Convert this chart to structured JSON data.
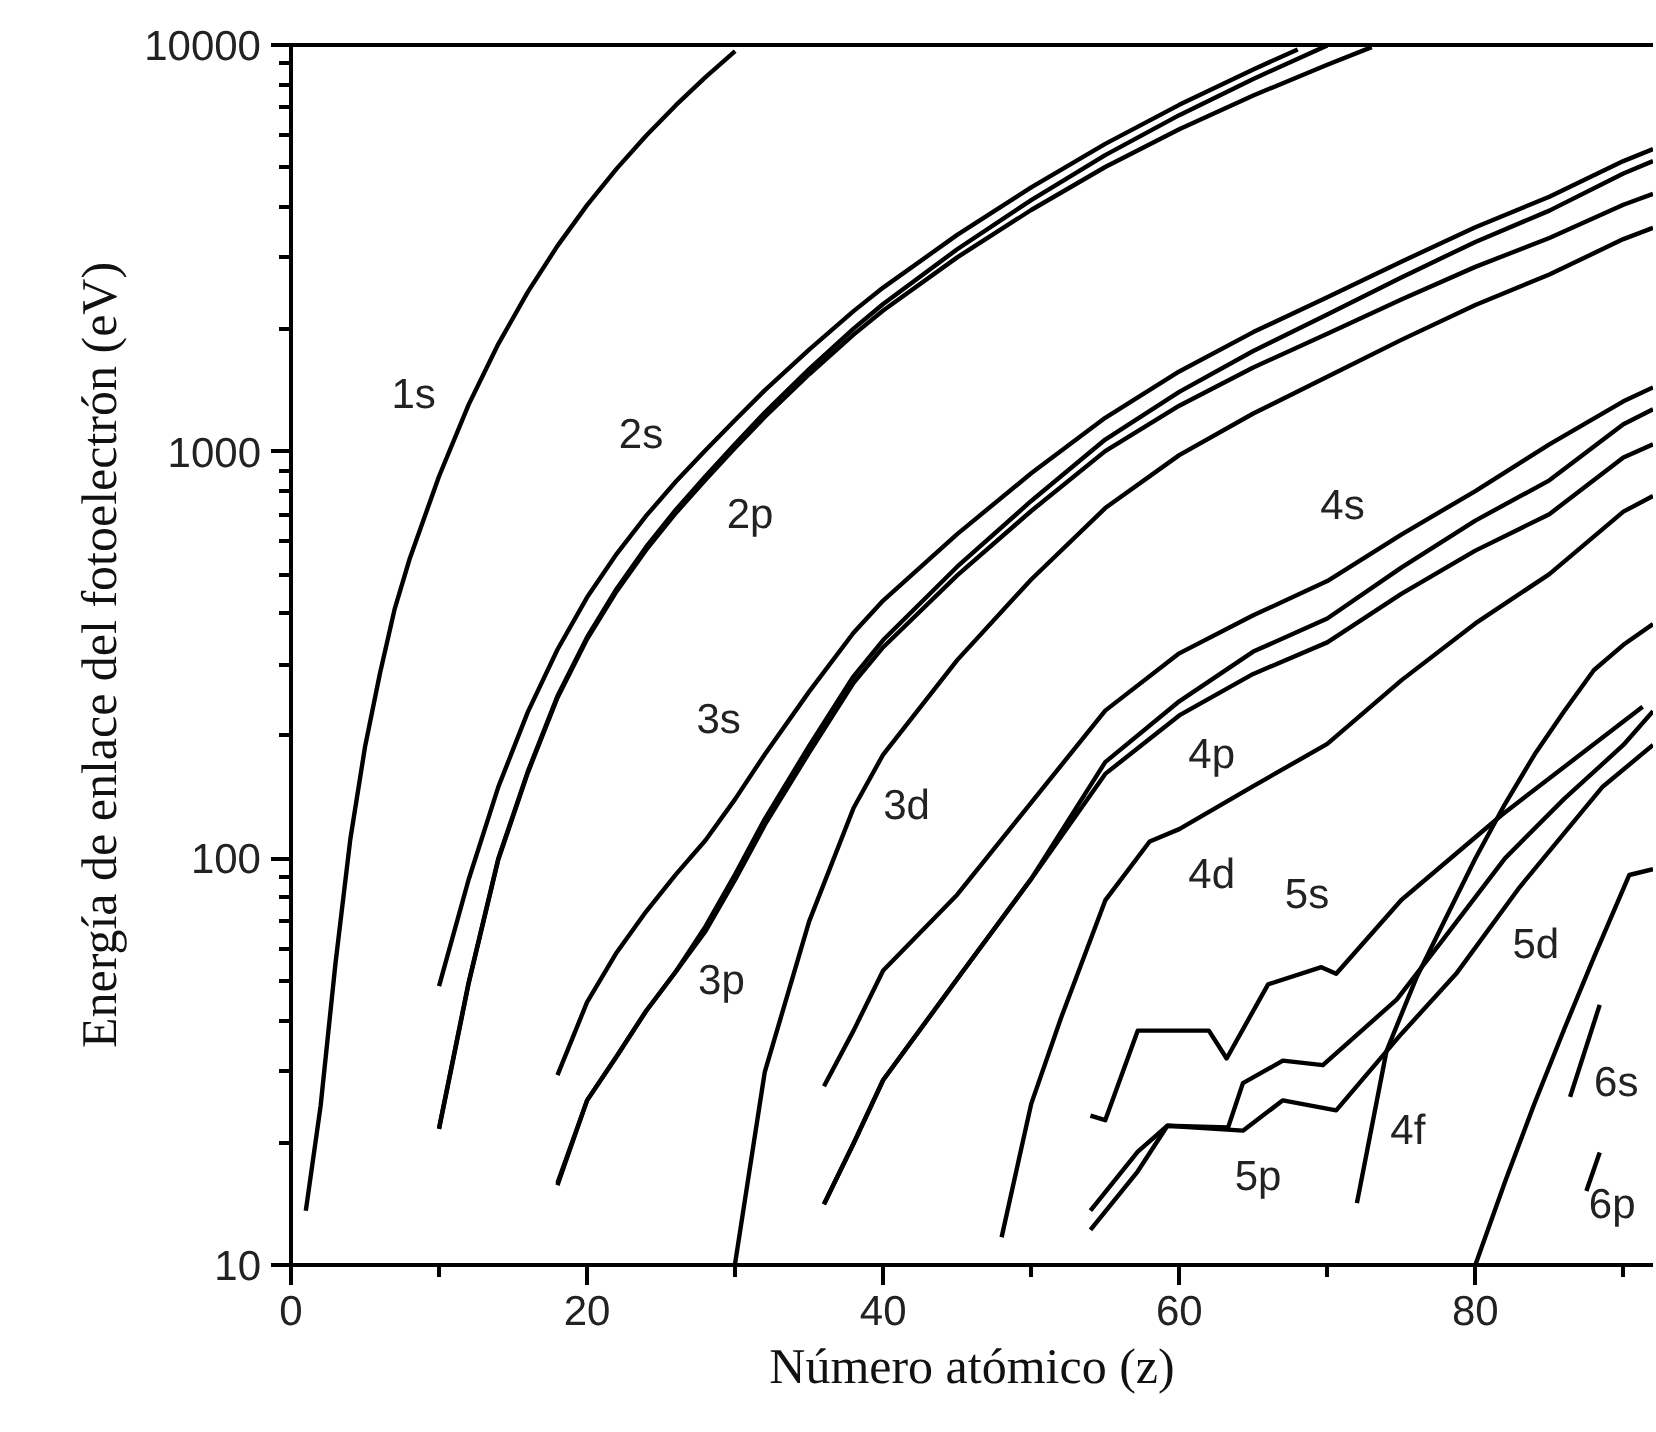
{
  "chart_data": {
    "type": "line",
    "xlabel": "Número atómico (z)",
    "ylabel": "Energía de enlace del fotoelectrón (eV)",
    "log": "y",
    "grid": false,
    "marker": "none",
    "line_style": "solid",
    "xlim": [
      0,
      92
    ],
    "ylim": [
      10,
      10000
    ],
    "xticks": [
      0,
      {
        "value": 10,
        "label": null
      },
      20,
      {
        "value": 30,
        "label": null
      },
      40,
      {
        "value": 50,
        "label": null
      },
      60,
      {
        "value": 70,
        "label": null
      },
      80,
      {
        "value": 90,
        "label": null
      }
    ],
    "yticks": [
      10,
      {
        "value": 20,
        "label": null
      },
      {
        "value": 30,
        "label": null
      },
      {
        "value": 40,
        "label": null
      },
      {
        "value": 50,
        "label": null
      },
      {
        "value": 60,
        "label": null
      },
      {
        "value": 70,
        "label": null
      },
      {
        "value": 80,
        "label": null
      },
      {
        "value": 90,
        "label": null
      },
      100,
      {
        "value": 200,
        "label": null
      },
      {
        "value": 300,
        "label": null
      },
      {
        "value": 400,
        "label": null
      },
      {
        "value": 500,
        "label": null
      },
      {
        "value": 600,
        "label": null
      },
      {
        "value": 700,
        "label": null
      },
      {
        "value": 800,
        "label": null
      },
      {
        "value": 900,
        "label": null
      },
      1000,
      {
        "value": 2000,
        "label": null
      },
      {
        "value": 3000,
        "label": null
      },
      {
        "value": 4000,
        "label": null
      },
      {
        "value": 5000,
        "label": null
      },
      {
        "value": 6000,
        "label": null
      },
      {
        "value": 7000,
        "label": null
      },
      {
        "value": 8000,
        "label": null
      },
      {
        "value": 9000,
        "label": null
      },
      10000
    ],
    "series": [
      {
        "color": "#000000",
        "x": [
          1,
          2,
          3,
          4,
          5,
          6,
          7,
          8,
          10,
          12,
          14,
          16,
          18,
          20,
          22,
          24,
          26,
          28,
          30
        ],
        "values": [
          13.6,
          24.6,
          55,
          111,
          188,
          284,
          410,
          543,
          870,
          1305,
          1839,
          2472,
          3206,
          4038,
          4966,
          5989,
          7112,
          8333,
          9659
        ]
      },
      {
        "color": "#000000",
        "x": [
          10,
          12,
          14,
          16,
          18,
          20,
          22,
          24,
          26,
          28,
          30,
          32,
          35,
          38,
          40,
          45,
          50,
          55,
          60,
          65,
          68
        ],
        "values": [
          48.5,
          88.7,
          149.7,
          229.2,
          326.3,
          438.4,
          560.9,
          696,
          844.6,
          1008.6,
          1196.2,
          1414.6,
          1782,
          2216,
          2532,
          3412,
          4465,
          5714,
          7126,
          8708,
          9751
        ]
      },
      {
        "color": "#000000",
        "x": [
          10,
          12,
          14,
          16,
          18,
          20,
          22,
          24,
          26,
          28,
          30,
          32,
          35,
          38,
          40,
          45,
          50,
          55,
          60,
          65,
          70
        ],
        "values": [
          21.7,
          49.6,
          99.8,
          163.6,
          250.6,
          349.7,
          460.2,
          583.8,
          719.9,
          870,
          1044.9,
          1248.1,
          1596,
          2007,
          2307,
          3146,
          4156,
          5359,
          6722,
          8252,
          9978
        ]
      },
      {
        "color": "#000000",
        "x": [
          10,
          12,
          14,
          16,
          18,
          20,
          22,
          24,
          26,
          28,
          30,
          32,
          35,
          38,
          40,
          45,
          50,
          55,
          60,
          65,
          70,
          73
        ],
        "values": [
          21.6,
          49.2,
          99.2,
          162.5,
          248.4,
          346.2,
          453.8,
          574.1,
          706.8,
          852.7,
          1021.8,
          1217,
          1550,
          1940,
          2223,
          3004,
          3929,
          5012,
          6208,
          7514,
          8944,
          9881
        ]
      },
      {
        "color": "#000000",
        "x": [
          18,
          20,
          22,
          24,
          26,
          28,
          30,
          32,
          35,
          38,
          40,
          45,
          50,
          55,
          60,
          65,
          70,
          75,
          80,
          85,
          90,
          92
        ],
        "values": [
          29.3,
          44.3,
          58.7,
          74.1,
          91.3,
          110.8,
          139.8,
          180.1,
          257,
          358.7,
          430.3,
          627.1,
          884.7,
          1211,
          1575,
          1968,
          2398,
          2932,
          3562,
          4237,
          5182,
          5548
        ]
      },
      {
        "color": "#000000",
        "x": [
          18,
          20,
          22,
          24,
          26,
          28,
          30,
          32,
          35,
          38,
          40,
          45,
          50,
          55,
          60,
          65,
          70,
          75,
          80,
          85,
          90,
          92
        ],
        "values": [
          15.9,
          25.4,
          32.6,
          42.2,
          52.7,
          68,
          91.4,
          124.9,
          189,
          280.3,
          344.2,
          521.3,
          756.5,
          1071,
          1403,
          1768,
          2173,
          2682,
          3279,
          3915,
          4830,
          5182
        ]
      },
      {
        "color": "#000000",
        "x": [
          18,
          20,
          22,
          24,
          26,
          28,
          30,
          32,
          35,
          38,
          40,
          45,
          50,
          55,
          60,
          65,
          70,
          75,
          80,
          85,
          90,
          92
        ],
        "values": [
          15.7,
          25.4,
          32.6,
          42.2,
          52.7,
          66.2,
          88.6,
          120.8,
          182,
          270,
          330.5,
          496.5,
          714.6,
          1003,
          1297,
          1611,
          1950,
          2367,
          2847,
          3354,
          4046,
          4303
        ]
      },
      {
        "color": "#000000",
        "x": [
          30,
          32,
          35,
          38,
          40,
          45,
          50,
          55,
          60,
          65,
          70,
          75,
          80,
          85,
          90,
          92
        ],
        "values": [
          10.1,
          29.8,
          70,
          133,
          180,
          307.2,
          485,
          726.6,
          980.4,
          1241,
          1528,
          1883,
          2295,
          2727,
          3332,
          3552
        ]
      },
      {
        "color": "#000000",
        "x": [
          36,
          38,
          40,
          45,
          50,
          55,
          60,
          65,
          70,
          75,
          80,
          85,
          90,
          92
        ],
        "values": [
          27.5,
          37.7,
          53,
          81.4,
          137.1,
          230.8,
          319.2,
          396,
          480.5,
          625.4,
          800,
          1042,
          1330,
          1439
        ]
      },
      {
        "color": "#000000",
        "x": [
          36,
          38,
          40,
          45,
          50,
          55,
          60,
          65,
          70,
          75,
          80,
          85,
          90,
          92
        ],
        "values": [
          14.1,
          19.9,
          28.5,
          50.5,
          89,
          172.4,
          243.3,
          322.4,
          388.7,
          518.7,
          676.9,
          850,
          1168,
          1271
        ]
      },
      {
        "color": "#000000",
        "x": [
          36,
          38,
          40,
          45,
          50,
          55,
          60,
          65,
          70,
          75,
          80,
          85,
          90,
          92
        ],
        "values": [
          14.1,
          19.9,
          28.5,
          50.5,
          89,
          161.3,
          224.6,
          284.1,
          339.7,
          446.8,
          571,
          702,
          967,
          1043
        ]
      },
      {
        "color": "#000000",
        "x": [
          48,
          50,
          52,
          55,
          58,
          60,
          65,
          70,
          75,
          80,
          85,
          90,
          92
        ],
        "values": [
          11.7,
          24.9,
          40.4,
          78.8,
          110,
          118,
          150.5,
          191.2,
          273.9,
          378.2,
          500,
          712,
          778
        ]
      },
      {
        "color": "#000000",
        "x": [
          72,
          74,
          76,
          78,
          80,
          82,
          84,
          86,
          88,
          90,
          92
        ],
        "values": [
          14.2,
          33.6,
          50.7,
          71.2,
          99.9,
          136,
          180,
          230,
          290,
          335,
          377
        ]
      },
      {
        "color": "#000000",
        "x": [
          54,
          55,
          57.2,
          62,
          63.2,
          66,
          69.6,
          70.6,
          75,
          81.8,
          91.3
        ],
        "values": [
          23.3,
          22.7,
          37.7,
          37.7,
          32.2,
          49,
          54,
          52,
          79,
          128,
          236
        ]
      },
      {
        "color": "#000000",
        "x": [
          54,
          57.2,
          59.2,
          63.3,
          64.3,
          67,
          69.7,
          74.7,
          77.8,
          82,
          86,
          90,
          92
        ],
        "values": [
          13.6,
          19,
          22,
          21.8,
          28,
          31.8,
          31,
          45,
          63,
          100,
          140,
          190,
          230
        ]
      },
      {
        "color": "#000000",
        "x": [
          54,
          57.2,
          59.2,
          64.3,
          67,
          70.6,
          75,
          78.7,
          83,
          88.6,
          92
        ],
        "values": [
          12.2,
          17,
          22,
          21.4,
          25.4,
          24,
          37,
          52,
          85,
          150,
          190
        ]
      },
      {
        "color": "#000000",
        "x": [
          80,
          82,
          84,
          86,
          88,
          90.4,
          92
        ],
        "values": [
          10,
          16,
          25,
          38,
          57,
          91,
          94
        ]
      },
      {
        "color": "#000000",
        "x": [
          86.4,
          88.4
        ],
        "values": [
          25.9,
          43.6
        ]
      },
      {
        "color": "#000000",
        "x": [
          87.5,
          88.4
        ],
        "values": [
          15.2,
          18.9
        ]
      }
    ],
    "annotations": [
      "1s",
      "2s",
      "2p",
      "3s",
      "3p",
      "3d",
      "4s",
      "4p",
      "4d",
      "5s",
      "5d",
      "4f",
      "5p",
      "6s",
      "6p"
    ]
  }
}
